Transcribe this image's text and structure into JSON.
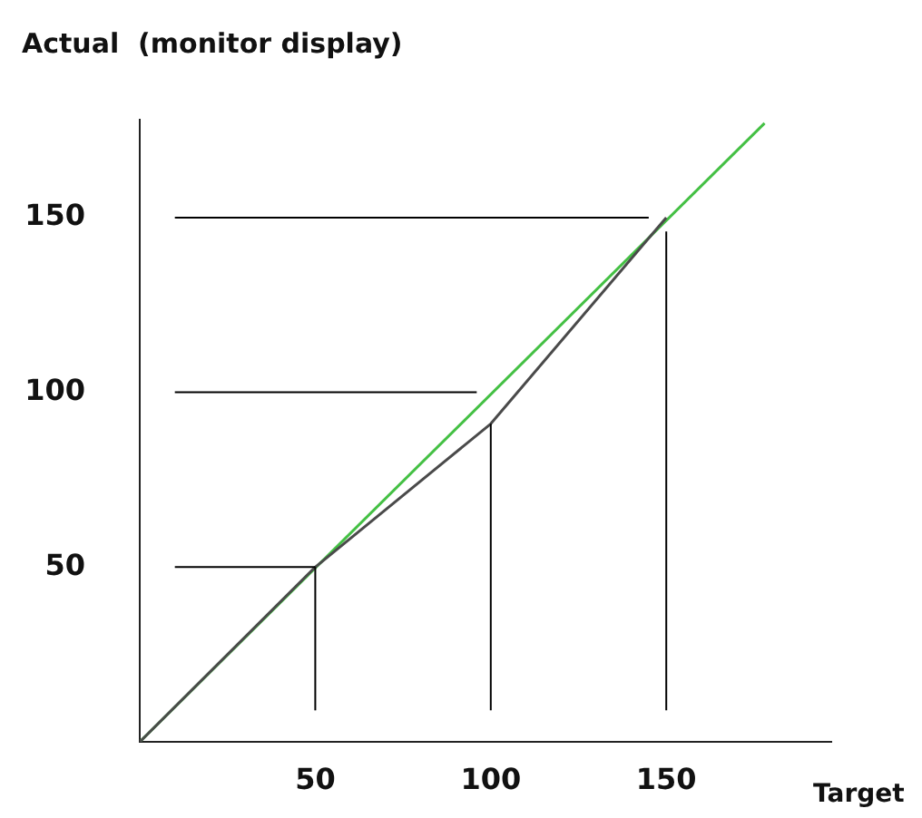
{
  "chart_data": {
    "type": "line",
    "xlabel": "Target",
    "ylabel": "Actual  (monitor display)",
    "xlim": [
      0,
      197
    ],
    "ylim": [
      0,
      178
    ],
    "xticks": [
      50,
      100,
      150
    ],
    "yticks": [
      50,
      100,
      150
    ],
    "grid": false,
    "series": [
      {
        "color": "#000000",
        "x": [
          10,
          50
        ],
        "values": [
          50,
          50
        ]
      },
      {
        "color": "#000000",
        "x": [
          10,
          96
        ],
        "values": [
          100,
          100
        ]
      },
      {
        "color": "#000000",
        "x": [
          10,
          145
        ],
        "values": [
          150,
          150
        ]
      },
      {
        "color": "#000000",
        "x": [
          50,
          50
        ],
        "values": [
          9,
          50
        ]
      },
      {
        "color": "#000000",
        "x": [
          100,
          100
        ],
        "values": [
          9,
          91
        ]
      },
      {
        "color": "#000000",
        "x": [
          150,
          150
        ],
        "values": [
          9,
          146
        ]
      },
      {
        "color": "#4a4a4a",
        "x": [
          0,
          50,
          100,
          150
        ],
        "values": [
          0,
          50,
          91,
          150
        ]
      },
      {
        "color": "#44c044",
        "x": [
          0,
          178
        ],
        "values": [
          0,
          177
        ]
      }
    ]
  }
}
